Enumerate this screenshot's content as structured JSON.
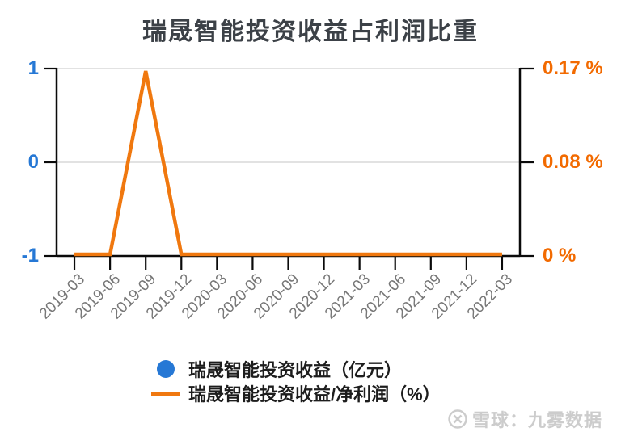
{
  "title": "瑞晟智能投资收益占利润比重",
  "colors": {
    "blue": "#2678d5",
    "orange": "#f0780f",
    "orange_label": "#f26a00",
    "axis": "#0a0a0a",
    "grid": "#e2e2e2",
    "x_label": "#777777",
    "title_text": "#3c4147",
    "legend_text": "#1d1d1d",
    "watermark": "#cccccc"
  },
  "chart_data": {
    "type": "line",
    "title": "瑞晟智能投资收益占利润比重",
    "categories": [
      "2019-03",
      "2019-06",
      "2019-09",
      "2019-12",
      "2020-03",
      "2020-06",
      "2020-09",
      "2020-12",
      "2021-03",
      "2021-06",
      "2021-09",
      "2021-12",
      "2022-03"
    ],
    "series": [
      {
        "name": "瑞晟智能投资收益（亿元）",
        "axis": "left",
        "marker": "circle",
        "color": "#2678d5",
        "plotted": false,
        "values": []
      },
      {
        "name": "瑞晟智能投资收益/净利润（%）",
        "axis": "right",
        "marker": "line",
        "color": "#f0780f",
        "plotted": true,
        "values": [
          0,
          0,
          0.17,
          0,
          0,
          0,
          0,
          0,
          0,
          0,
          0,
          0,
          0
        ]
      }
    ],
    "left_axis": {
      "ticks": [
        "1",
        "0",
        "-1"
      ],
      "range": [
        -1,
        1
      ]
    },
    "right_axis": {
      "ticks": [
        "0.17 %",
        "0.08 %",
        "0 %"
      ],
      "range": [
        0,
        0.17
      ]
    },
    "grid": true,
    "legend_position": "bottom",
    "x_label_rotation_deg": -45
  },
  "legend": {
    "items": [
      {
        "label": "瑞晟智能投资收益（亿元）",
        "marker": "circle",
        "color": "#2678d5"
      },
      {
        "label": "瑞晟智能投资收益/净利润（%）",
        "marker": "line",
        "color": "#f0780f"
      }
    ]
  },
  "watermark": {
    "text": "雪球：九雾数据",
    "logo": "xueqiu-logo-icon"
  }
}
